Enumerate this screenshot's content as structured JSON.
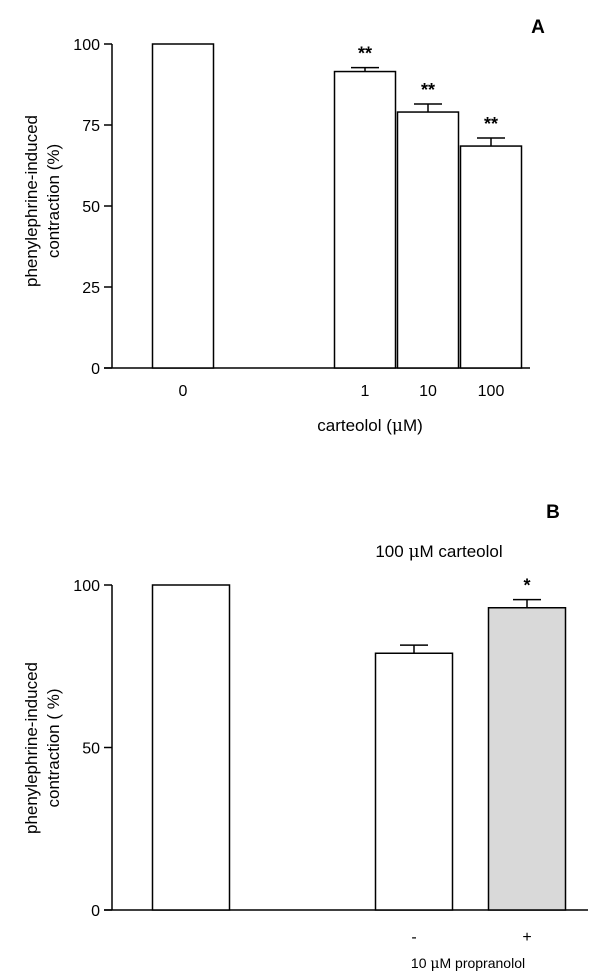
{
  "chart_data": [
    {
      "panel": "A",
      "type": "bar",
      "ylabel_lines": [
        "phenylephrine-induced",
        "contraction (%)"
      ],
      "xlabel_prefix": "carteolol (",
      "xlabel_mu": "μ",
      "xlabel_suffix": "M)",
      "ylim": [
        0,
        100
      ],
      "yticks": [
        0,
        25,
        50,
        75,
        100
      ],
      "categories": [
        "0",
        "1",
        "10",
        "100"
      ],
      "values": [
        100,
        91.5,
        79,
        68.5
      ],
      "errors": [
        0,
        1.2,
        2.5,
        2.5
      ],
      "significance": [
        "",
        "**",
        "**",
        "**"
      ],
      "fills": [
        "#ffffff",
        "#ffffff",
        "#ffffff",
        "#ffffff"
      ],
      "grid": false
    },
    {
      "panel": "B",
      "type": "bar",
      "ylabel_lines": [
        "phenylephrine-induced",
        "contraction ( %)"
      ],
      "ylim": [
        0,
        100
      ],
      "yticks": [
        0,
        50,
        100
      ],
      "categories": [
        "",
        "-",
        "+"
      ],
      "values": [
        100,
        79,
        93
      ],
      "errors": [
        0,
        2.5,
        2.5
      ],
      "significance": [
        "",
        "",
        "*"
      ],
      "fills": [
        "#ffffff",
        "#ffffff",
        "#d9d9d9"
      ],
      "top_annotation_prefix": "100 ",
      "top_annotation_mu": "μ",
      "top_annotation_suffix": "M carteolol",
      "bottom_annotation_prefix": "10 ",
      "bottom_annotation_mu": "μ",
      "bottom_annotation_suffix": "M propranolol",
      "grid": false
    }
  ]
}
